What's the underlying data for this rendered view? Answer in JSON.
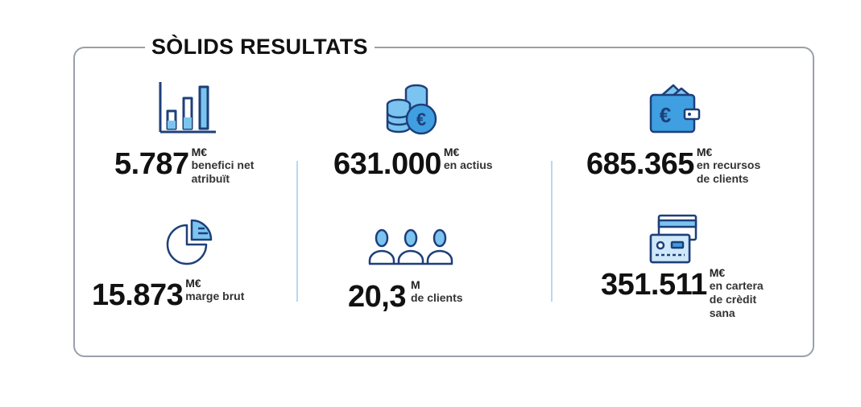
{
  "title": "SÒLIDS RESULTATS",
  "colors": {
    "accent_blue": "#1d6fbf",
    "light_blue": "#7cc4f0",
    "dark_navy": "#0b2a5b",
    "border": "#9aa0aa"
  },
  "stats": [
    {
      "icon": "bar-chart-icon",
      "value": "5.787",
      "unit": "M€",
      "desc": "benefici net\natribuït"
    },
    {
      "icon": "coins-euro-icon",
      "value": "631.000",
      "unit": "M€",
      "desc": "en actius"
    },
    {
      "icon": "wallet-euro-icon",
      "value": "685.365",
      "unit": "M€",
      "desc": "en recursos\nde clients"
    },
    {
      "icon": "pie-chart-icon",
      "value": "15.873",
      "unit": "M€",
      "desc": "marge brut"
    },
    {
      "icon": "people-icon",
      "value": "20,3",
      "unit": "M",
      "desc": "de clients"
    },
    {
      "icon": "credit-card-icon",
      "value": "351.511",
      "unit": "M€",
      "desc": "en cartera\nde crèdit\nsana"
    }
  ]
}
